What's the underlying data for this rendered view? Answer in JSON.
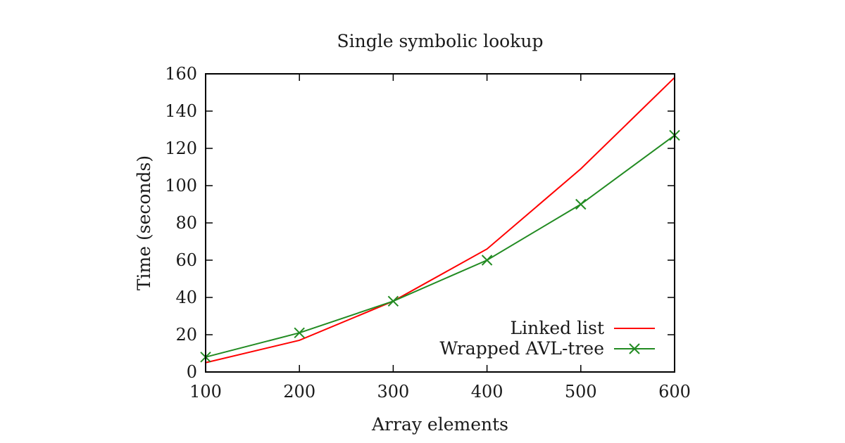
{
  "chart_data": {
    "type": "line",
    "title": "Single symbolic lookup",
    "xlabel": "Array elements",
    "ylabel": "Time (seconds)",
    "xlim": [
      100,
      600
    ],
    "ylim": [
      0,
      160
    ],
    "xticks": [
      100,
      200,
      300,
      400,
      500,
      600
    ],
    "yticks": [
      0,
      20,
      40,
      60,
      80,
      100,
      120,
      140,
      160
    ],
    "grid": false,
    "legend_position": "bottom-right",
    "x": [
      100,
      200,
      300,
      400,
      500,
      600
    ],
    "series": [
      {
        "name": "Linked list",
        "values": [
          5,
          17,
          38,
          66,
          109,
          158
        ],
        "color": "#ff0000",
        "marker": "none"
      },
      {
        "name": "Wrapped AVL-tree",
        "values": [
          8,
          21,
          38,
          60,
          90,
          127
        ],
        "color": "#228b22",
        "marker": "x"
      }
    ]
  }
}
